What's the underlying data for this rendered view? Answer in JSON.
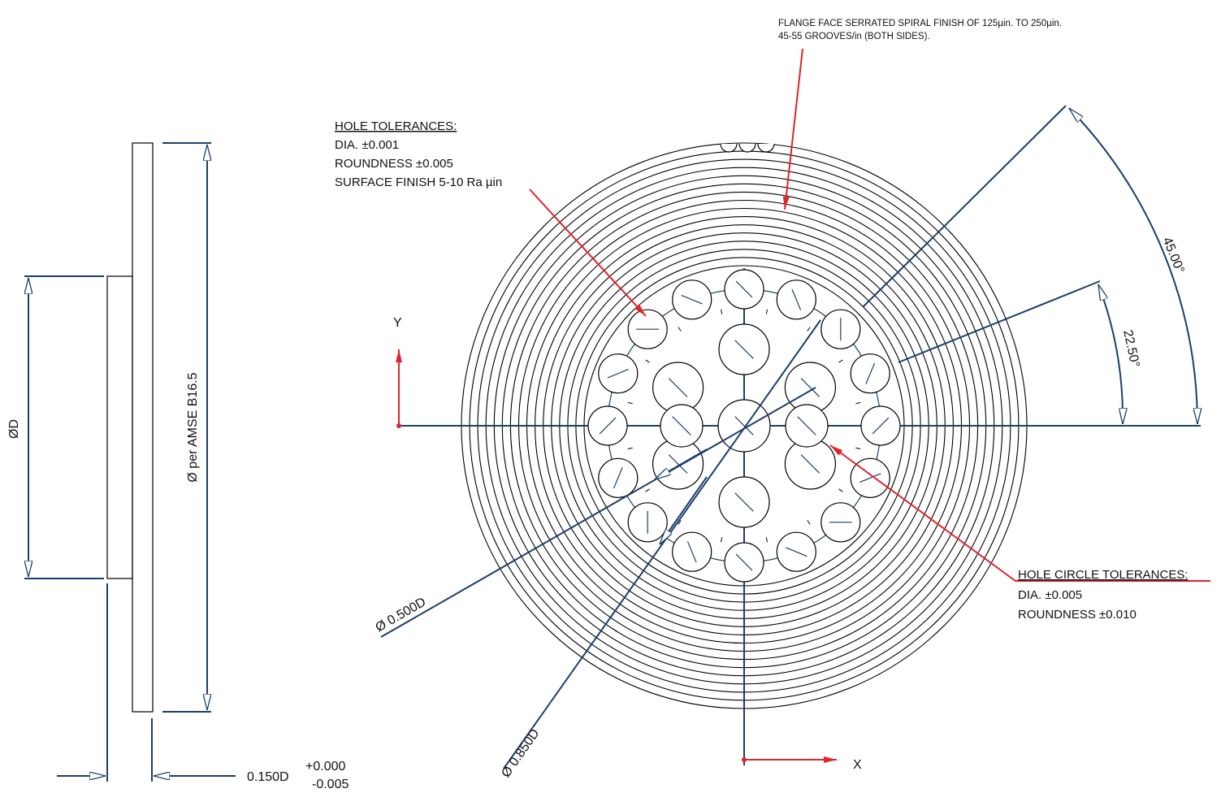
{
  "drawing": {
    "colors": {
      "outline": "#000000",
      "dimension": "#1b3f6b",
      "callout": "#e0242a"
    },
    "side_view": {
      "bore_dia_label": "ØD",
      "flange_dia_label": "Ø per AMSE B16.5",
      "thickness_label": "0.150D",
      "thickness_tol_upper": "+0.000",
      "thickness_tol_lower": "-0.005"
    },
    "face_view": {
      "serration_note": {
        "line1": "FLANGE FACE  SERRATED SPIRAL FINISH OF 125µin. TO 250µin.",
        "line2": "45-55 GROOVES/in (BOTH SIDES)."
      },
      "hole_tolerances": {
        "title": "HOLE TOLERANCES:",
        "lines": [
          "DIA. ±0.001",
          "ROUNDNESS ±0.005",
          "SURFACE FINISH 5-10 Ra µin"
        ]
      },
      "hole_circle_tolerances": {
        "title": "HOLE CIRCLE TOLERANCES:",
        "lines": [
          "DIA.  ±0.005",
          "ROUNDNESS  ±0.010"
        ]
      },
      "angle_large": "45.00°",
      "angle_small": "22.50°",
      "inner_circle_dia": "Ø 0.500D",
      "outer_circle_dia": "Ø 0.850D",
      "axis_x": "X",
      "axis_y": "Y",
      "outer_holes": 16,
      "inner_holes": 6,
      "serration_rings": 16
    }
  }
}
